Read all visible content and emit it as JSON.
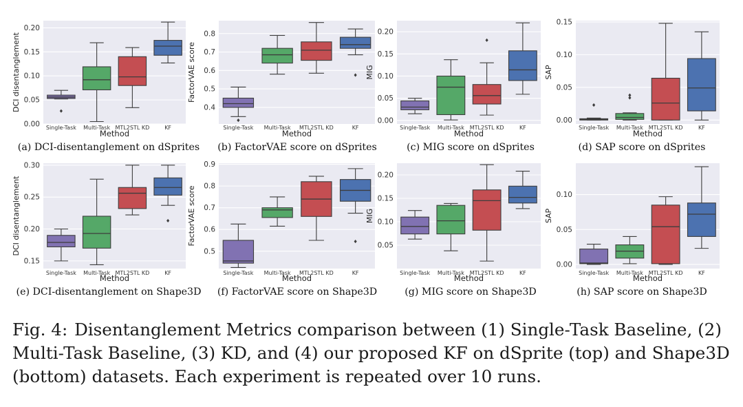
{
  "figure": {
    "caption_label": "Fig. 4:",
    "caption_text": "Disentanglement Metrics comparison between (1) Single-Task Baseline, (2) Multi-Task Baseline, (3) KD, and (4) our proposed KF on dSprite (top) and Shape3D (bottom) datasets. Each experiment is repeated over 10 runs."
  },
  "colors": {
    "Single-Task": "#8172b2",
    "Multi-Task": "#55a868",
    "MTL2STL KD": "#c44e52",
    "KF": "#4c72b0",
    "plot_bg": "#eaeaf2",
    "grid": "#ffffff"
  },
  "chart_data": [
    {
      "type": "box",
      "caption": "(a) DCI-disentanglement on dSprites",
      "xlabel": "Method",
      "ylabel": "DCI disentanglement",
      "categories": [
        "Single-Task",
        "Multi-Task",
        "MTL2STL KD",
        "KF"
      ],
      "ylim": [
        0.0,
        0.215
      ],
      "yticks": [
        "0.00",
        "0.05",
        "0.10",
        "0.15",
        "0.20"
      ],
      "boxes": [
        {
          "min": 0.052,
          "q1": 0.053,
          "median": 0.056,
          "q3": 0.06,
          "max": 0.07,
          "outliers": [
            0.027
          ]
        },
        {
          "min": 0.005,
          "q1": 0.071,
          "median": 0.092,
          "q3": 0.119,
          "max": 0.169,
          "outliers": []
        },
        {
          "min": 0.034,
          "q1": 0.08,
          "median": 0.098,
          "q3": 0.14,
          "max": 0.159,
          "outliers": []
        },
        {
          "min": 0.127,
          "q1": 0.143,
          "median": 0.162,
          "q3": 0.174,
          "max": 0.212,
          "outliers": []
        }
      ]
    },
    {
      "type": "box",
      "caption": "(b) FactorVAE score on dSprites",
      "xlabel": "Method",
      "ylabel": "FactorVAE score",
      "categories": [
        "Single-Task",
        "Multi-Task",
        "MTL2STL KD",
        "KF"
      ],
      "ylim": [
        0.31,
        0.87
      ],
      "yticks": [
        "0.4",
        "0.5",
        "0.6",
        "0.7",
        "0.8"
      ],
      "boxes": [
        {
          "min": 0.35,
          "q1": 0.4,
          "median": 0.42,
          "q3": 0.45,
          "max": 0.51,
          "outliers": [
            0.33
          ]
        },
        {
          "min": 0.58,
          "q1": 0.64,
          "median": 0.685,
          "q3": 0.72,
          "max": 0.79,
          "outliers": []
        },
        {
          "min": 0.585,
          "q1": 0.655,
          "median": 0.71,
          "q3": 0.755,
          "max": 0.86,
          "outliers": []
        },
        {
          "min": 0.685,
          "q1": 0.72,
          "median": 0.74,
          "q3": 0.78,
          "max": 0.825,
          "outliers": [
            0.575
          ]
        }
      ]
    },
    {
      "type": "box",
      "caption": "(c) MIG score on dSprites",
      "xlabel": "Method",
      "ylabel": "MIG",
      "categories": [
        "Single-Task",
        "Multi-Task",
        "MTL2STL KD",
        "KF"
      ],
      "ylim": [
        -0.008,
        0.225
      ],
      "yticks": [
        "0.00",
        "0.05",
        "0.10",
        "0.15",
        "0.20"
      ],
      "boxes": [
        {
          "min": 0.015,
          "q1": 0.024,
          "median": 0.03,
          "q3": 0.044,
          "max": 0.05,
          "outliers": []
        },
        {
          "min": 0.001,
          "q1": 0.013,
          "median": 0.075,
          "q3": 0.1,
          "max": 0.137,
          "outliers": []
        },
        {
          "min": 0.012,
          "q1": 0.037,
          "median": 0.056,
          "q3": 0.081,
          "max": 0.13,
          "outliers": [
            0.181
          ]
        },
        {
          "min": 0.059,
          "q1": 0.09,
          "median": 0.114,
          "q3": 0.157,
          "max": 0.22,
          "outliers": []
        }
      ]
    },
    {
      "type": "box",
      "caption": "(d) SAP score on dSprites",
      "xlabel": "Method",
      "ylabel": "SAP",
      "categories": [
        "Single-Task",
        "Multi-Task",
        "MTL2STL KD",
        "KF"
      ],
      "ylim": [
        -0.006,
        0.152
      ],
      "yticks": [
        "0.00",
        "0.05",
        "0.10",
        "0.15"
      ],
      "boxes": [
        {
          "min": 0.0,
          "q1": 0.0,
          "median": 0.001,
          "q3": 0.002,
          "max": 0.003,
          "outliers": [
            0.023
          ]
        },
        {
          "min": 0.0,
          "q1": 0.001,
          "median": 0.004,
          "q3": 0.01,
          "max": 0.011,
          "outliers": [
            0.034,
            0.038
          ]
        },
        {
          "min": 0.0,
          "q1": 0.0,
          "median": 0.026,
          "q3": 0.064,
          "max": 0.148,
          "outliers": []
        },
        {
          "min": 0.0,
          "q1": 0.014,
          "median": 0.049,
          "q3": 0.094,
          "max": 0.135,
          "outliers": []
        }
      ]
    },
    {
      "type": "box",
      "caption": "(e) DCI-disentanglement on Shape3D",
      "xlabel": "Method",
      "ylabel": "DCI disentanglement",
      "categories": [
        "Single-Task",
        "Multi-Task",
        "MTL2STL KD",
        "KF"
      ],
      "ylim": [
        0.138,
        0.303
      ],
      "yticks": [
        "0.15",
        "0.20",
        "0.25",
        "0.30"
      ],
      "boxes": [
        {
          "min": 0.15,
          "q1": 0.172,
          "median": 0.179,
          "q3": 0.19,
          "max": 0.2,
          "outliers": []
        },
        {
          "min": 0.144,
          "q1": 0.17,
          "median": 0.193,
          "q3": 0.22,
          "max": 0.278,
          "outliers": []
        },
        {
          "min": 0.222,
          "q1": 0.232,
          "median": 0.256,
          "q3": 0.265,
          "max": 0.3,
          "outliers": []
        },
        {
          "min": 0.237,
          "q1": 0.253,
          "median": 0.265,
          "q3": 0.28,
          "max": 0.3,
          "outliers": [
            0.213
          ]
        }
      ]
    },
    {
      "type": "box",
      "caption": "(f) FactorVAE score on Shape3D",
      "xlabel": "Method",
      "ylabel": "FactorVAE score",
      "categories": [
        "Single-Task",
        "Multi-Task",
        "MTL2STL KD",
        "KF"
      ],
      "ylim": [
        0.42,
        0.905
      ],
      "yticks": [
        "0.5",
        "0.6",
        "0.7",
        "0.8",
        "0.9"
      ],
      "boxes": [
        {
          "min": 0.425,
          "q1": 0.445,
          "median": 0.455,
          "q3": 0.55,
          "max": 0.625,
          "outliers": []
        },
        {
          "min": 0.615,
          "q1": 0.655,
          "median": 0.69,
          "q3": 0.7,
          "max": 0.75,
          "outliers": []
        },
        {
          "min": 0.55,
          "q1": 0.66,
          "median": 0.74,
          "q3": 0.82,
          "max": 0.845,
          "outliers": []
        },
        {
          "min": 0.675,
          "q1": 0.73,
          "median": 0.78,
          "q3": 0.83,
          "max": 0.88,
          "outliers": [
            0.545
          ]
        }
      ]
    },
    {
      "type": "box",
      "caption": "(g) MIG score on Shape3D",
      "xlabel": "Method",
      "ylabel": "MIG",
      "categories": [
        "Single-Task",
        "Multi-Task",
        "MTL2STL KD",
        "KF"
      ],
      "ylim": [
        0.0,
        0.225
      ],
      "yticks": [
        "0.05",
        "0.10",
        "0.15",
        "0.20"
      ],
      "boxes": [
        {
          "min": 0.063,
          "q1": 0.074,
          "median": 0.09,
          "q3": 0.11,
          "max": 0.124,
          "outliers": []
        },
        {
          "min": 0.038,
          "q1": 0.074,
          "median": 0.102,
          "q3": 0.135,
          "max": 0.139,
          "outliers": []
        },
        {
          "min": 0.016,
          "q1": 0.082,
          "median": 0.145,
          "q3": 0.168,
          "max": 0.222,
          "outliers": []
        },
        {
          "min": 0.128,
          "q1": 0.14,
          "median": 0.152,
          "q3": 0.176,
          "max": 0.208,
          "outliers": []
        }
      ]
    },
    {
      "type": "box",
      "caption": "(h) SAP score on Shape3D",
      "xlabel": "Method",
      "ylabel": "SAP",
      "categories": [
        "Single-Task",
        "Multi-Task",
        "MTL2STL KD",
        "KF"
      ],
      "ylim": [
        -0.006,
        0.145
      ],
      "yticks": [
        "0.00",
        "0.05",
        "0.10"
      ],
      "boxes": [
        {
          "min": 0.0,
          "q1": 0.001,
          "median": 0.002,
          "q3": 0.022,
          "max": 0.029,
          "outliers": []
        },
        {
          "min": 0.001,
          "q1": 0.009,
          "median": 0.019,
          "q3": 0.028,
          "max": 0.04,
          "outliers": []
        },
        {
          "min": 0.0,
          "q1": 0.001,
          "median": 0.054,
          "q3": 0.085,
          "max": 0.097,
          "outliers": []
        },
        {
          "min": 0.023,
          "q1": 0.04,
          "median": 0.072,
          "q3": 0.088,
          "max": 0.14,
          "outliers": []
        }
      ]
    }
  ]
}
